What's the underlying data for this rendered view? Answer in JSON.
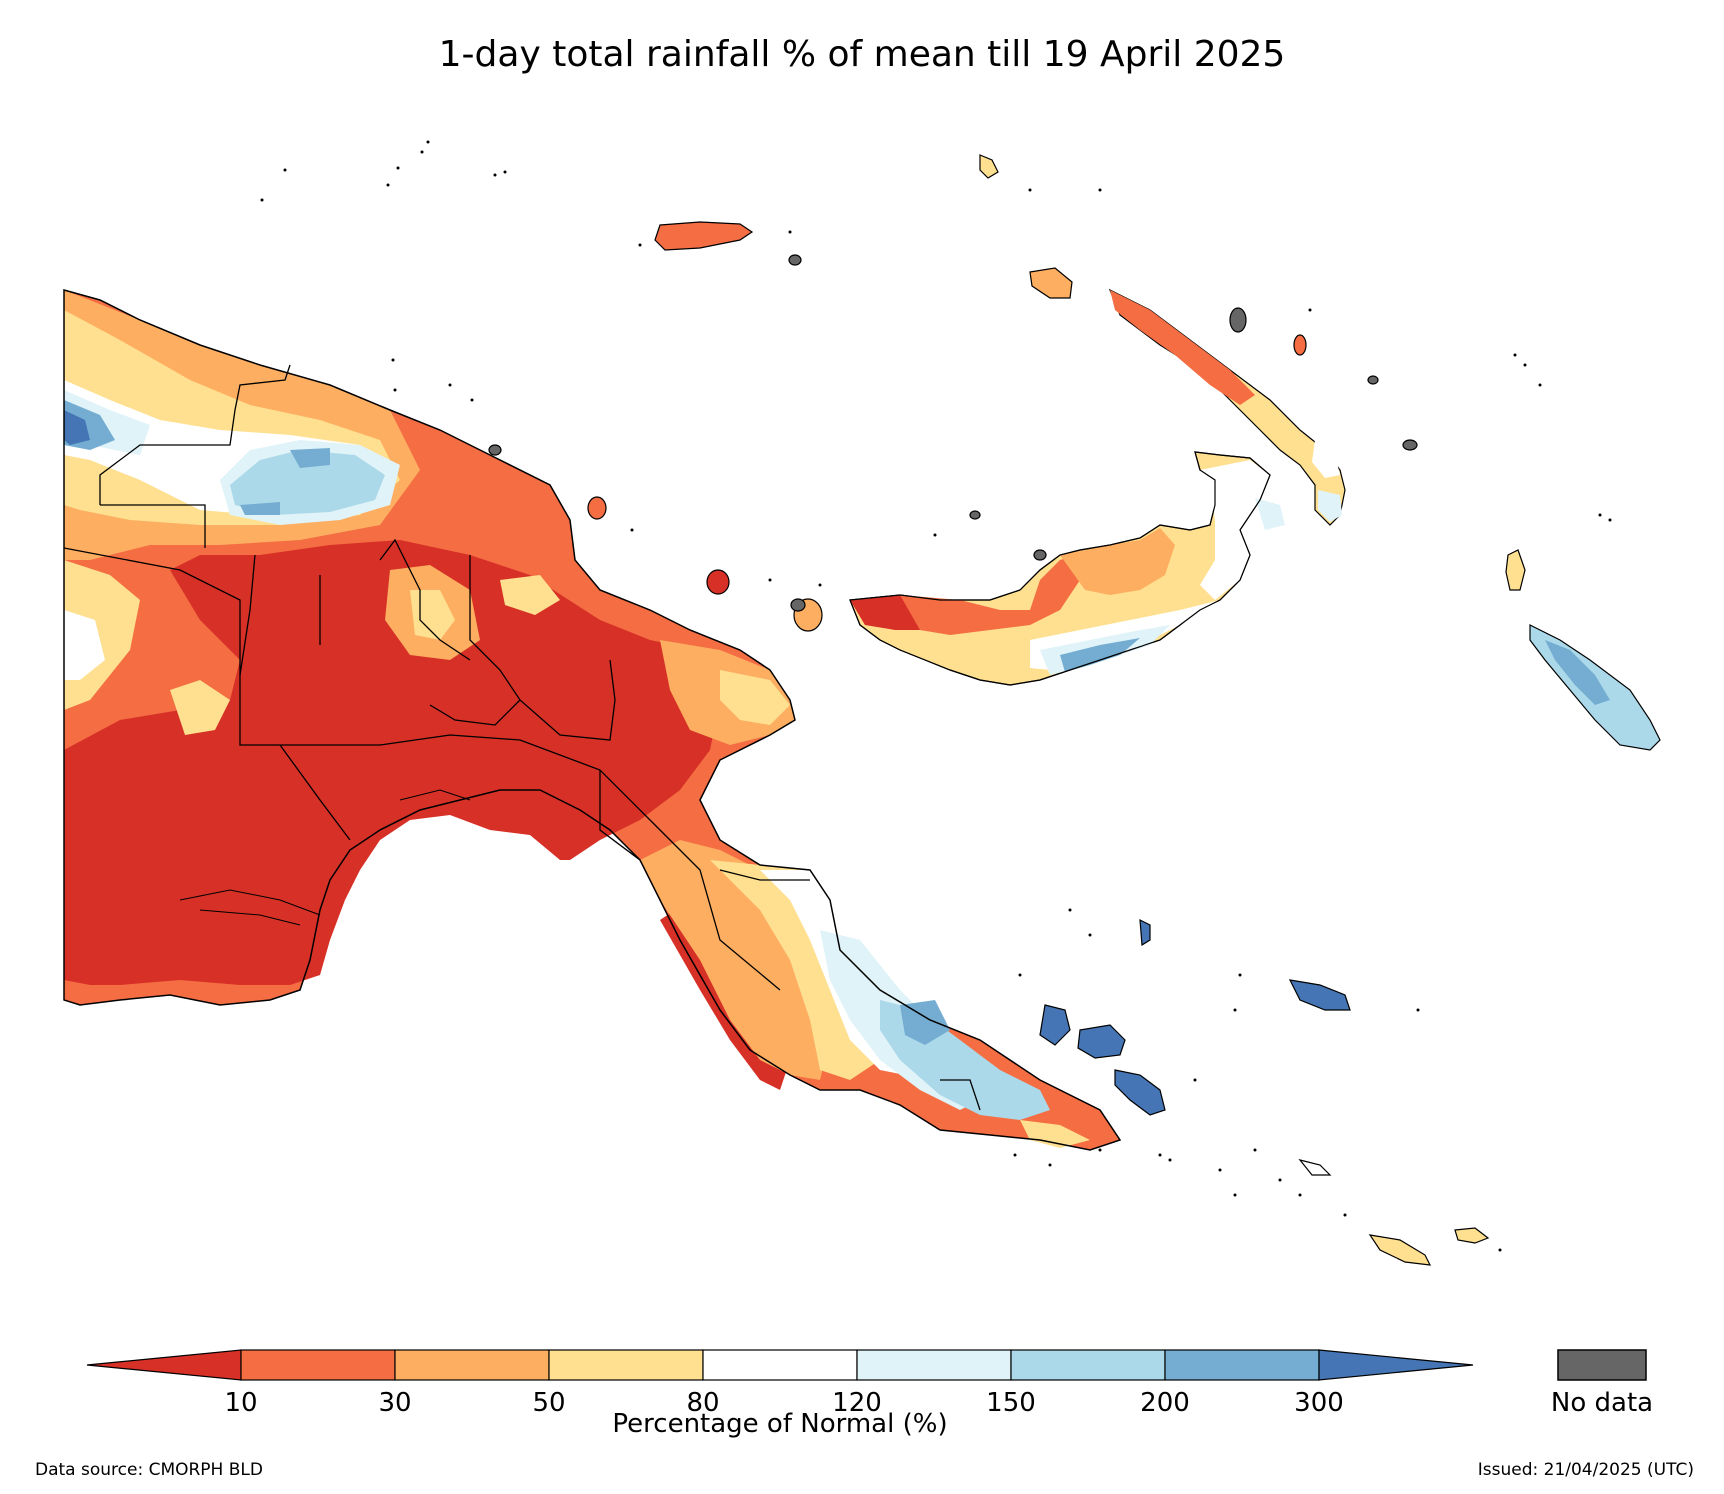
{
  "title": "1-day total rainfall % of mean till 19 April 2025",
  "legend": {
    "ticks": [
      "10",
      "30",
      "50",
      "80",
      "120",
      "150",
      "200",
      "300"
    ],
    "colors": [
      "#d73027",
      "#f46d43",
      "#fdae61",
      "#fee090",
      "#ffffff",
      "#e0f3f8",
      "#abd9e9",
      "#74add1",
      "#4575b4"
    ],
    "label": "Percentage of Normal (%)",
    "nodata_label": "No data",
    "nodata_color": "#666666"
  },
  "source": "Data source: CMORPH BLD",
  "issued": "Issued: 21/04/2025 (UTC)"
}
